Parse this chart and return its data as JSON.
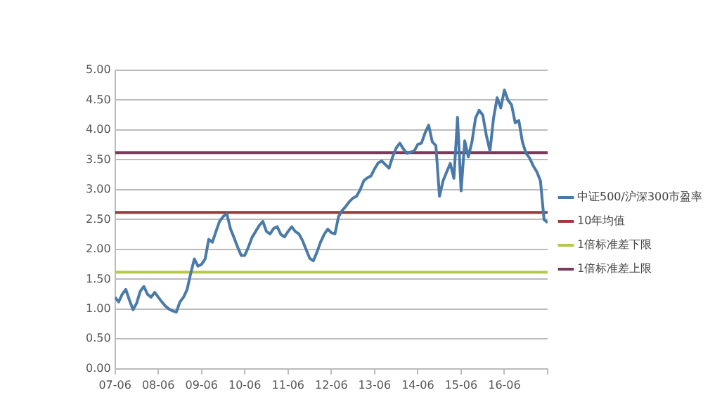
{
  "chart_data": {
    "type": "line",
    "categories": [
      "07-06",
      null,
      null,
      null,
      null,
      null,
      null,
      null,
      null,
      null,
      null,
      null,
      "08-06",
      null,
      null,
      null,
      null,
      null,
      null,
      null,
      null,
      null,
      null,
      null,
      "09-06",
      null,
      null,
      null,
      null,
      null,
      null,
      null,
      null,
      null,
      null,
      null,
      "10-06",
      null,
      null,
      null,
      null,
      null,
      null,
      null,
      null,
      null,
      null,
      null,
      "11-06",
      null,
      null,
      null,
      null,
      null,
      null,
      null,
      null,
      null,
      null,
      null,
      "12-06",
      null,
      null,
      null,
      null,
      null,
      null,
      null,
      null,
      null,
      null,
      null,
      "13-06",
      null,
      null,
      null,
      null,
      null,
      null,
      null,
      null,
      null,
      null,
      null,
      "14-06",
      null,
      null,
      null,
      null,
      null,
      null,
      null,
      null,
      null,
      null,
      null,
      "15-06",
      null,
      null,
      null,
      null,
      null,
      null,
      null,
      null,
      null,
      null,
      null,
      "16-06",
      null,
      null,
      null,
      null,
      null,
      null,
      null,
      null,
      null,
      null,
      null,
      null
    ],
    "series": [
      {
        "name": "中证500/沪深300市盈率",
        "color": "#4a7aa8",
        "values": [
          1.2,
          1.12,
          1.25,
          1.33,
          1.15,
          0.99,
          1.1,
          1.3,
          1.38,
          1.25,
          1.2,
          1.28,
          1.2,
          1.12,
          1.05,
          1.0,
          0.97,
          0.95,
          1.12,
          1.2,
          1.33,
          1.6,
          1.84,
          1.72,
          1.75,
          1.84,
          2.17,
          2.12,
          2.3,
          2.47,
          2.55,
          2.6,
          2.35,
          2.2,
          2.04,
          1.9,
          1.9,
          2.04,
          2.2,
          2.3,
          2.4,
          2.47,
          2.3,
          2.26,
          2.35,
          2.38,
          2.25,
          2.21,
          2.3,
          2.38,
          2.3,
          2.26,
          2.15,
          2.0,
          1.85,
          1.81,
          1.95,
          2.12,
          2.25,
          2.34,
          2.28,
          2.26,
          2.55,
          2.65,
          2.72,
          2.8,
          2.86,
          2.89,
          3.0,
          3.15,
          3.2,
          3.23,
          3.35,
          3.45,
          3.48,
          3.42,
          3.36,
          3.55,
          3.7,
          3.78,
          3.68,
          3.61,
          3.63,
          3.65,
          3.76,
          3.78,
          3.95,
          4.08,
          3.8,
          3.74,
          2.89,
          3.15,
          3.3,
          3.44,
          3.19,
          4.21,
          2.98,
          3.82,
          3.55,
          3.8,
          4.2,
          4.33,
          4.25,
          3.91,
          3.65,
          4.2,
          4.54,
          4.37,
          4.67,
          4.5,
          4.42,
          4.12,
          4.16,
          3.8,
          3.61,
          3.53,
          3.4,
          3.3,
          3.15,
          2.5,
          2.45
        ]
      }
    ],
    "ref_lines": [
      {
        "axis": "y",
        "value": 2.62,
        "label": "10年均值",
        "color": "#a0383c"
      },
      {
        "axis": "y",
        "value": 1.62,
        "label": "1倍标准差下限",
        "color": "#b5c84a"
      },
      {
        "axis": "y",
        "value": 3.62,
        "label": "1倍标准差上限",
        "color": "#7a3a5a"
      }
    ],
    "ylim": [
      0,
      5
    ],
    "yticks": [
      {
        "value": 0,
        "label": "0.00"
      },
      {
        "value": 0.5,
        "label": "0.50"
      },
      {
        "value": 1,
        "label": "1.00"
      },
      {
        "value": 1.5,
        "label": "1.50"
      },
      {
        "value": 2,
        "label": "2.00"
      },
      {
        "value": 2.5,
        "label": "2.50"
      },
      {
        "value": 3,
        "label": "3.00"
      },
      {
        "value": 3.5,
        "label": "3.50"
      },
      {
        "value": 4,
        "label": "4.00"
      },
      {
        "value": 4.5,
        "label": "4.50"
      },
      {
        "value": 5,
        "label": "5.00"
      }
    ],
    "grid": "y",
    "legend": "right",
    "marker": "none",
    "line_style": "solid"
  }
}
